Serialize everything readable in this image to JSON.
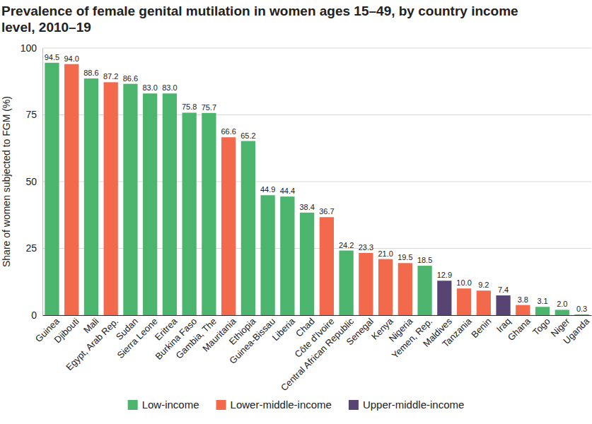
{
  "chart_data": {
    "type": "bar",
    "title": "Prevalence of female genital mutilation in women ages 15–49, by country income level, 2010–19",
    "y_label": "Share of women subjected to FGM (%)",
    "categories": [
      "Guinea",
      "Djibouti",
      "Mali",
      "Egypt, Arab Rep.",
      "Sudan",
      "Sierra Leone",
      "Eritrea",
      "Burkina Faso",
      "Gambia, The",
      "Mauritania",
      "Ethiopia",
      "Guinea-Bissau",
      "Liberia",
      "Chad",
      "Côte d'Ivoire",
      "Central African Republic",
      "Senegal",
      "Kenya",
      "Nigeria",
      "Yemen, Rep.",
      "Maldives",
      "Tanzania",
      "Benin",
      "Iraq",
      "Ghana",
      "Togo",
      "Niger",
      "Uganda"
    ],
    "series": [
      {
        "name": "Low-income",
        "color": "#4bb46d",
        "values": [
          94.5,
          null,
          88.6,
          null,
          86.6,
          83.0,
          83.0,
          75.8,
          75.7,
          null,
          65.2,
          44.9,
          44.4,
          38.4,
          null,
          24.2,
          null,
          null,
          null,
          18.5,
          null,
          null,
          null,
          null,
          null,
          3.1,
          2.0,
          0.3
        ],
        "value_labels": [
          "94.5",
          null,
          "88.6",
          null,
          "86.6",
          "83.0",
          "83.0",
          "75.8",
          "75.7",
          null,
          "65.2",
          "44.9",
          "44.4",
          "38.4",
          null,
          "24.2",
          null,
          null,
          null,
          "18.5",
          null,
          null,
          null,
          null,
          null,
          "3.1",
          "2.0",
          "0.3"
        ]
      },
      {
        "name": "Lower-middle-income",
        "color": "#f26a4b",
        "values": [
          null,
          94.0,
          null,
          87.2,
          null,
          null,
          null,
          null,
          null,
          66.6,
          null,
          null,
          null,
          null,
          36.7,
          null,
          23.3,
          21.0,
          19.5,
          null,
          null,
          10.0,
          9.2,
          null,
          3.8,
          null,
          null,
          null
        ],
        "value_labels": [
          null,
          "94.0",
          null,
          "87.2",
          null,
          null,
          null,
          null,
          null,
          "66.6",
          null,
          null,
          null,
          null,
          "36.7",
          null,
          "23.3",
          "21.0",
          "19.5",
          null,
          null,
          "10.0",
          "9.2",
          null,
          "3.8",
          null,
          null,
          null
        ]
      },
      {
        "name": "Upper-middle-income",
        "color": "#574473",
        "values": [
          null,
          null,
          null,
          null,
          null,
          null,
          null,
          null,
          null,
          null,
          null,
          null,
          null,
          null,
          null,
          null,
          null,
          null,
          null,
          null,
          12.9,
          null,
          null,
          7.4,
          null,
          null,
          null,
          null
        ],
        "value_labels": [
          null,
          null,
          null,
          null,
          null,
          null,
          null,
          null,
          null,
          null,
          null,
          null,
          null,
          null,
          null,
          null,
          null,
          null,
          null,
          null,
          "12.9",
          null,
          null,
          "7.4",
          null,
          null,
          null,
          null
        ]
      }
    ],
    "ylim": [
      0,
      100
    ],
    "yticks": [
      0,
      25,
      50,
      75,
      100
    ],
    "grid": true,
    "data_labels": true,
    "legend": "bottom"
  }
}
